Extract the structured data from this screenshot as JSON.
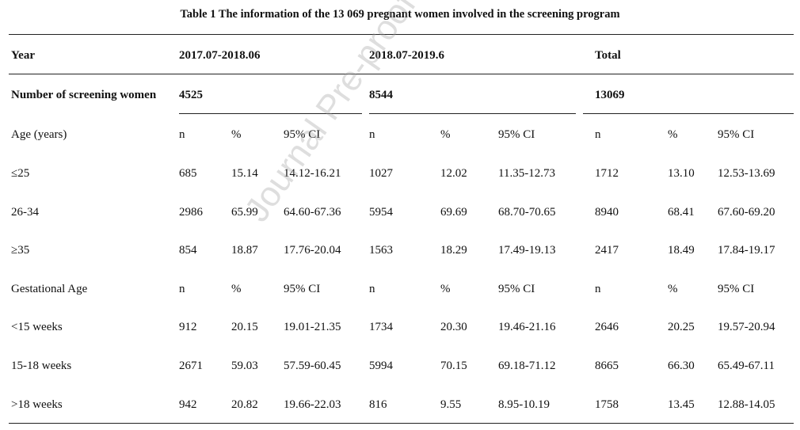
{
  "title": "Table 1 The information of the 13 069 pregnant women involved in the screening program",
  "watermark": "Journal Pre-proof",
  "header": {
    "year_label": "Year",
    "periods": [
      "2017.07-2018.06",
      "2018.07-2019.6",
      "Total"
    ]
  },
  "screening": {
    "label": "Number of screening women",
    "values": [
      "4525",
      "8544",
      "13069"
    ]
  },
  "sections": [
    {
      "label": "Age (years)",
      "cols": [
        "n",
        "%",
        "95% CI",
        "n",
        "%",
        "95% CI",
        "n",
        "%",
        "95% CI"
      ],
      "rows": [
        {
          "label": "≤25",
          "cells": [
            "685",
            "15.14",
            "14.12-16.21",
            "1027",
            "12.02",
            "11.35-12.73",
            "1712",
            "13.10",
            "12.53-13.69"
          ]
        },
        {
          "label": "26-34",
          "cells": [
            "2986",
            "65.99",
            "64.60-67.36",
            "5954",
            "69.69",
            "68.70-70.65",
            "8940",
            "68.41",
            "67.60-69.20"
          ]
        },
        {
          "label": "≥35",
          "cells": [
            "854",
            "18.87",
            "17.76-20.04",
            "1563",
            "18.29",
            "17.49-19.13",
            "2417",
            "18.49",
            "17.84-19.17"
          ]
        }
      ]
    },
    {
      "label": "Gestational Age",
      "cols": [
        "n",
        "%",
        "95% CI",
        "n",
        "%",
        "95% CI",
        "n",
        "%",
        "95% CI"
      ],
      "rows": [
        {
          "label": "<15 weeks",
          "cells": [
            "912",
            "20.15",
            "19.01-21.35",
            "1734",
            "20.30",
            "19.46-21.16",
            "2646",
            "20.25",
            "19.57-20.94"
          ]
        },
        {
          "label": "15-18 weeks",
          "cells": [
            "2671",
            "59.03",
            "57.59-60.45",
            "5994",
            "70.15",
            "69.18-71.12",
            "8665",
            "66.30",
            "65.49-67.11"
          ]
        },
        {
          "label": ">18 weeks",
          "cells": [
            "942",
            "20.82",
            "19.66-22.03",
            "816",
            "9.55",
            "8.95-10.19",
            "1758",
            "13.45",
            "12.88-14.05"
          ]
        }
      ]
    }
  ]
}
